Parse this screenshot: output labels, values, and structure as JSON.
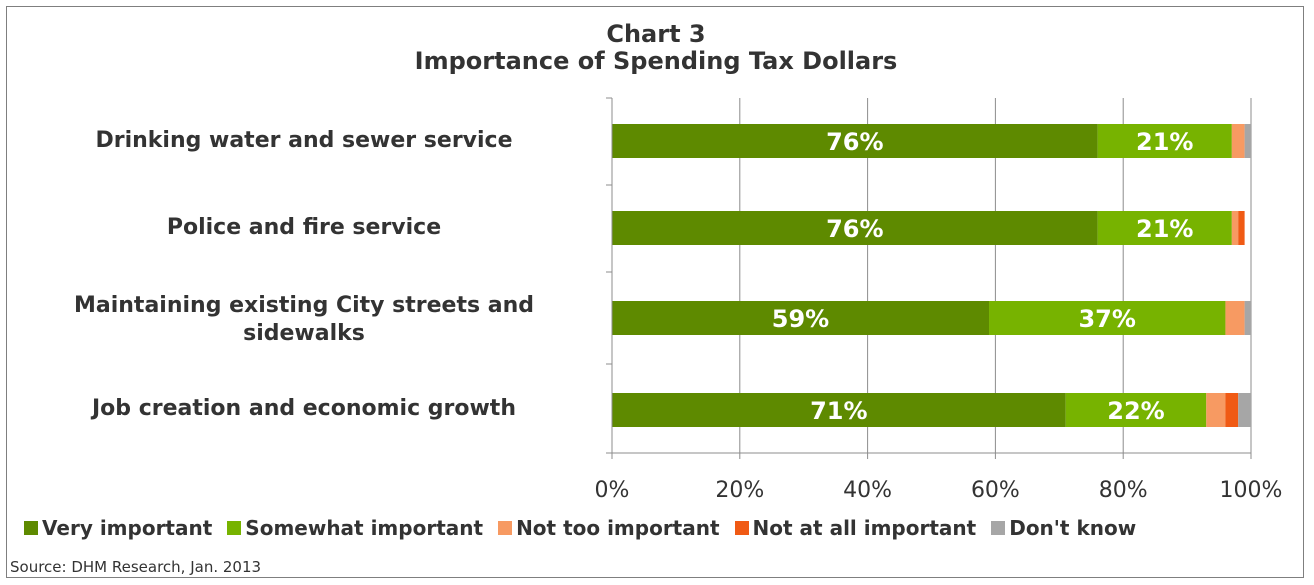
{
  "chart_data": {
    "type": "bar",
    "orientation": "horizontal",
    "stacked": true,
    "title": [
      "Chart 3",
      "Importance of Spending Tax Dollars"
    ],
    "categories": [
      "Drinking water and sewer service",
      "Police and fire service",
      "Maintaining existing City streets and sidewalks",
      "Job creation and economic growth"
    ],
    "series": [
      {
        "name": "Very important",
        "color": "#5e8a00",
        "values": [
          76,
          76,
          59,
          71
        ],
        "labels": [
          "76%",
          "76%",
          "59%",
          "71%"
        ]
      },
      {
        "name": "Somewhat important",
        "color": "#77b300",
        "values": [
          21,
          21,
          37,
          22
        ],
        "labels": [
          "21%",
          "21%",
          "37%",
          "22%"
        ]
      },
      {
        "name": "Not too important",
        "color": "#f79a62",
        "values": [
          2,
          1,
          3,
          3
        ],
        "labels": [
          "",
          "",
          "",
          ""
        ]
      },
      {
        "name": "Not at all important",
        "color": "#f05a14",
        "values": [
          0,
          1,
          0,
          2
        ],
        "labels": [
          "",
          "",
          "",
          ""
        ]
      },
      {
        "name": "Don't know",
        "color": "#a6a6a6",
        "values": [
          1,
          0,
          1,
          2
        ],
        "labels": [
          "",
          "",
          "",
          ""
        ]
      }
    ],
    "x_ticks": [
      "0%",
      "20%",
      "40%",
      "60%",
      "80%",
      "100%"
    ],
    "xlim": [
      0,
      100
    ],
    "grid": true,
    "legend_position": "bottom",
    "source": "Source: DHM Research, Jan. 2013"
  }
}
